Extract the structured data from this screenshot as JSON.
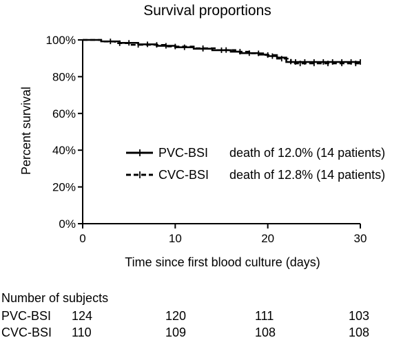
{
  "chart_data": {
    "type": "line",
    "title": "Survival proportions",
    "xlabel": "Time since first blood culture (days)",
    "ylabel": "Percent survival",
    "xlim": [
      0,
      30
    ],
    "ylim": [
      0,
      100
    ],
    "x_ticks": [
      "0",
      "10",
      "20",
      "30"
    ],
    "y_ticks": [
      "0%",
      "20%",
      "40%",
      "60%",
      "80%",
      "100%"
    ],
    "grid": false,
    "legend_position": "center-right",
    "series": [
      {
        "name": "PVC-BSI",
        "legend_note": "death of 12.0% (14 patients)",
        "line_style": "solid",
        "color": "#000000",
        "steps": [
          {
            "x": 0,
            "y": 100
          },
          {
            "x": 2,
            "y": 99.2
          },
          {
            "x": 4,
            "y": 98.4
          },
          {
            "x": 6,
            "y": 97.6
          },
          {
            "x": 8,
            "y": 96.8
          },
          {
            "x": 10,
            "y": 96.0
          },
          {
            "x": 12,
            "y": 95.2
          },
          {
            "x": 14,
            "y": 94.4
          },
          {
            "x": 16,
            "y": 93.6
          },
          {
            "x": 17,
            "y": 92.8
          },
          {
            "x": 19,
            "y": 92.0
          },
          {
            "x": 20,
            "y": 91.2
          },
          {
            "x": 21,
            "y": 90.4
          },
          {
            "x": 22,
            "y": 88.0
          },
          {
            "x": 30,
            "y": 88.0
          }
        ],
        "censor_x": [
          3,
          5,
          7,
          9,
          11,
          13,
          15,
          18,
          20.5,
          23,
          24,
          25,
          26,
          27,
          28,
          29,
          30
        ]
      },
      {
        "name": "CVC-BSI",
        "legend_note": "death of 12.8% (14 patients)",
        "line_style": "dashed",
        "color": "#000000",
        "steps": [
          {
            "x": 0,
            "y": 100
          },
          {
            "x": 2,
            "y": 99.1
          },
          {
            "x": 3.5,
            "y": 98.2
          },
          {
            "x": 5,
            "y": 97.3
          },
          {
            "x": 9,
            "y": 96.4
          },
          {
            "x": 12,
            "y": 95.5
          },
          {
            "x": 14.5,
            "y": 94.5
          },
          {
            "x": 16.5,
            "y": 93.6
          },
          {
            "x": 18,
            "y": 92.7
          },
          {
            "x": 19.5,
            "y": 91.8
          },
          {
            "x": 21,
            "y": 89.8
          },
          {
            "x": 22.5,
            "y": 87.2
          },
          {
            "x": 30,
            "y": 87.2
          }
        ],
        "censor_x": [
          4,
          6,
          8,
          10,
          13,
          15.5,
          17,
          19,
          20,
          21.5,
          23.5,
          25,
          26.5,
          28,
          29.5
        ]
      }
    ]
  },
  "risk_table": {
    "title": "Number of subjects",
    "rows": [
      {
        "label": "PVC-BSI",
        "values": [
          "124",
          "120",
          "111",
          "103"
        ]
      },
      {
        "label": "CVC-BSI",
        "values": [
          "110",
          "109",
          "108",
          "108"
        ]
      }
    ]
  }
}
